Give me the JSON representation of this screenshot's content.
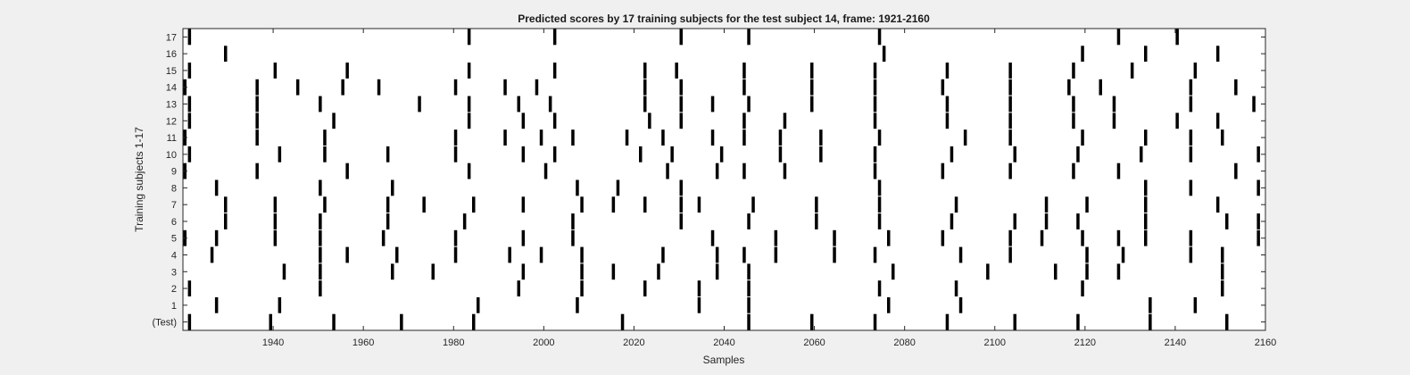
{
  "chart_data": {
    "type": "raster",
    "title": "Predicted scores by 17 training subjects for the test subject 14, frame: 1921-2160",
    "xlabel": "Samples",
    "ylabel": "Training subjects 1-17",
    "xlim": [
      1920,
      2160
    ],
    "x_ticks": [
      1940,
      1960,
      1980,
      2000,
      2020,
      2040,
      2060,
      2080,
      2100,
      2120,
      2140,
      2160
    ],
    "y_tick_labels": [
      "(Test)",
      "1",
      "2",
      "3",
      "4",
      "5",
      "6",
      "7",
      "8",
      "9",
      "10",
      "11",
      "12",
      "13",
      "14",
      "15",
      "16",
      "17"
    ],
    "grid": false,
    "mark_color": "#000000",
    "rows": [
      {
        "label": "(Test)",
        "events": [
          1921,
          1939,
          1953,
          1968,
          1984,
          2017,
          2045,
          2059,
          2073,
          2089,
          2104,
          2118,
          2134,
          2151
        ]
      },
      {
        "label": "1",
        "events": [
          1927,
          1941,
          1985,
          2007,
          2034,
          2045,
          2076,
          2092,
          2134,
          2144
        ]
      },
      {
        "label": "2",
        "events": [
          1921,
          1950,
          1994,
          2008,
          2022,
          2034,
          2045,
          2074,
          2091,
          2119,
          2150
        ]
      },
      {
        "label": "3",
        "events": [
          1942,
          1950,
          1966,
          1975,
          1995,
          2008,
          2015,
          2025,
          2038,
          2045,
          2077,
          2098,
          2113,
          2120,
          2127,
          2150
        ]
      },
      {
        "label": "4",
        "events": [
          1926,
          1950,
          1956,
          1967,
          1980,
          1992,
          1999,
          2008,
          2026,
          2038,
          2044,
          2051,
          2064,
          2073,
          2092,
          2103,
          2120,
          2128,
          2143,
          2150
        ]
      },
      {
        "label": "5",
        "events": [
          1920,
          1927,
          1940,
          1950,
          1964,
          1980,
          1995,
          2006,
          2037,
          2051,
          2064,
          2076,
          2088,
          2103,
          2110,
          2119,
          2127,
          2133,
          2143,
          2158
        ]
      },
      {
        "label": "6",
        "events": [
          1929,
          1940,
          1950,
          1965,
          1982,
          2006,
          2030,
          2045,
          2060,
          2074,
          2090,
          2104,
          2111,
          2118,
          2133,
          2151,
          2158
        ]
      },
      {
        "label": "7",
        "events": [
          1929,
          1940,
          1951,
          1965,
          1973,
          1984,
          1995,
          2008,
          2015,
          2022,
          2030,
          2034,
          2046,
          2060,
          2074,
          2091,
          2111,
          2120,
          2133,
          2149
        ]
      },
      {
        "label": "8",
        "events": [
          1927,
          1950,
          1966,
          2007,
          2016,
          2030,
          2074,
          2133,
          2143,
          2158
        ]
      },
      {
        "label": "9",
        "events": [
          1920,
          1936,
          1956,
          1983,
          2000,
          2027,
          2038,
          2044,
          2053,
          2073,
          2088,
          2103,
          2117,
          2127,
          2153
        ]
      },
      {
        "label": "10",
        "events": [
          1921,
          1941,
          1951,
          1965,
          1980,
          1995,
          2002,
          2021,
          2028,
          2039,
          2052,
          2061,
          2073,
          2090,
          2104,
          2118,
          2132,
          2143,
          2158
        ]
      },
      {
        "label": "11",
        "events": [
          1920,
          1936,
          1951,
          1980,
          1991,
          1999,
          2006,
          2018,
          2026,
          2037,
          2044,
          2052,
          2061,
          2074,
          2093,
          2103,
          2119,
          2133,
          2143,
          2150
        ]
      },
      {
        "label": "12",
        "events": [
          1921,
          1936,
          1953,
          1983,
          1995,
          2002,
          2023,
          2030,
          2044,
          2053,
          2073,
          2089,
          2103,
          2117,
          2126,
          2140,
          2149
        ]
      },
      {
        "label": "13",
        "events": [
          1921,
          1936,
          1950,
          1972,
          1983,
          1994,
          2001,
          2022,
          2030,
          2037,
          2045,
          2059,
          2073,
          2089,
          2103,
          2117,
          2126,
          2143,
          2157
        ]
      },
      {
        "label": "14",
        "events": [
          1920,
          1936,
          1945,
          1955,
          1963,
          1980,
          1991,
          1998,
          2022,
          2030,
          2044,
          2059,
          2073,
          2088,
          2103,
          2116,
          2123,
          2143,
          2153
        ]
      },
      {
        "label": "15",
        "events": [
          1921,
          1940,
          1956,
          1983,
          2002,
          2022,
          2029,
          2044,
          2059,
          2073,
          2089,
          2103,
          2117,
          2130,
          2144
        ]
      },
      {
        "label": "16",
        "events": [
          1929,
          2075,
          2119,
          2133,
          2149
        ]
      },
      {
        "label": "17",
        "events": [
          1921,
          1983,
          2002,
          2030,
          2045,
          2074,
          2127,
          2140
        ]
      }
    ]
  }
}
